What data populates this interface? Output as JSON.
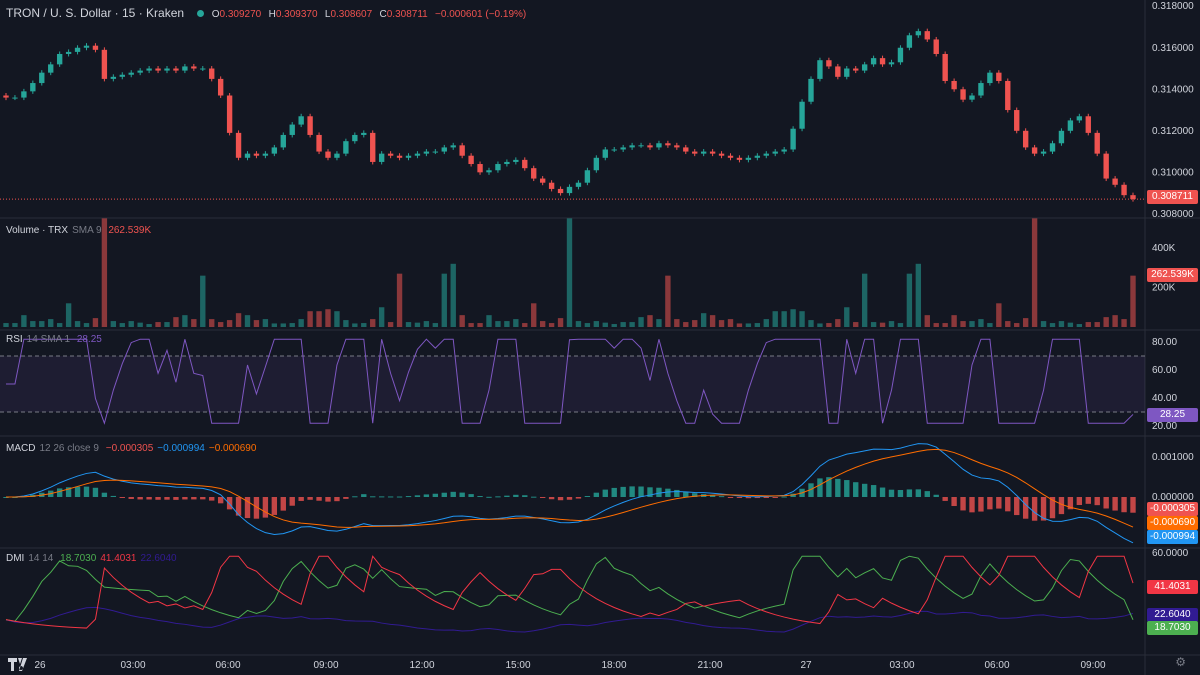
{
  "header": {
    "symbol_line": "TRON / U. S. Dollar · 15 · Kraken",
    "ohlc": [
      {
        "k": "O",
        "v": "0.309270"
      },
      {
        "k": "H",
        "v": "0.309370"
      },
      {
        "k": "L",
        "v": "0.308607"
      },
      {
        "k": "C",
        "v": "0.308711"
      }
    ],
    "change": "−0.000601 (−0.19%)"
  },
  "colors": {
    "bg": "#131722",
    "up": "#26a69a",
    "down": "#ef5350",
    "text": "#d1d4dc",
    "dim": "#787b86",
    "rsi": "#7e57c2",
    "macd": "#2196f3",
    "signal": "#ff6d00",
    "dmi_plus": "#4caf50",
    "dmi_minus": "#f23645",
    "adx": "#311b92"
  },
  "price_pane": {
    "ticks": [
      "0.318000",
      "0.316000",
      "0.314000",
      "0.312000",
      "0.310000",
      "0.308000"
    ],
    "current_tag": "0.308711"
  },
  "volume_pane": {
    "legend_name": "Volume · TRX",
    "legend_param": "SMA 9",
    "legend_value": "262.539K",
    "ticks": [
      "400K",
      "200K"
    ],
    "current_tag": "262.539K"
  },
  "rsi_pane": {
    "legend_name": "RSI",
    "legend_param": "14 SMA 1",
    "legend_value": "28.25",
    "ticks": [
      "80.00",
      "60.00",
      "40.00",
      "20.00"
    ],
    "current_tag": "28.25"
  },
  "macd_pane": {
    "legend_name": "MACD",
    "legend_param": "12 26 close 9",
    "v1": "−0.000305",
    "v2": "−0.000994",
    "v3": "−0.000690",
    "ticks": [
      "0.001000",
      "0.000000"
    ],
    "tags": [
      "-0.000305",
      "-0.000690",
      "-0.000994"
    ]
  },
  "dmi_pane": {
    "legend_name": "DMI",
    "legend_param": "14 14",
    "v1": "18.7030",
    "v2": "41.4031",
    "v3": "22.6040",
    "ticks": [
      "60.0000"
    ],
    "tags": [
      "41.4031",
      "22.6040",
      "18.7030"
    ]
  },
  "time_axis": [
    "26",
    "03:00",
    "06:00",
    "09:00",
    "12:00",
    "15:00",
    "18:00",
    "21:00",
    "27",
    "03:00",
    "06:00",
    "09:00"
  ],
  "chart_data": {
    "type": "candlestick",
    "title": "TRON / U. S. Dollar · 15 · Kraken",
    "ylim": [
      0.3078,
      0.3183
    ],
    "candles_close": [
      0.3136,
      0.3136,
      0.3139,
      0.3143,
      0.3148,
      0.3152,
      0.3157,
      0.3158,
      0.316,
      0.3161,
      0.3159,
      0.3145,
      0.3146,
      0.3147,
      0.3148,
      0.3149,
      0.315,
      0.3149,
      0.315,
      0.3149,
      0.3151,
      0.315,
      0.315,
      0.3145,
      0.3137,
      0.3119,
      0.3107,
      0.3109,
      0.3108,
      0.3109,
      0.3112,
      0.3118,
      0.3123,
      0.3127,
      0.3118,
      0.311,
      0.3107,
      0.3109,
      0.3115,
      0.3118,
      0.3119,
      0.3105,
      0.3109,
      0.3108,
      0.3107,
      0.3108,
      0.3109,
      0.311,
      0.311,
      0.3112,
      0.3113,
      0.3108,
      0.3104,
      0.31,
      0.3101,
      0.3104,
      0.3105,
      0.3106,
      0.3102,
      0.3097,
      0.3095,
      0.3092,
      0.309,
      0.3093,
      0.3095,
      0.3101,
      0.3107,
      0.3111,
      0.3111,
      0.3112,
      0.3113,
      0.3113,
      0.3112,
      0.3114,
      0.3113,
      0.3112,
      0.311,
      0.3109,
      0.311,
      0.3109,
      0.3108,
      0.3107,
      0.3106,
      0.3107,
      0.3108,
      0.3109,
      0.311,
      0.3111,
      0.3121,
      0.3134,
      0.3145,
      0.3154,
      0.3151,
      0.3146,
      0.315,
      0.3149,
      0.3152,
      0.3155,
      0.3152,
      0.3153,
      0.316,
      0.3166,
      0.3168,
      0.3164,
      0.3157,
      0.3144,
      0.314,
      0.3135,
      0.3137,
      0.3143,
      0.3148,
      0.3144,
      0.313,
      0.312,
      0.3112,
      0.3109,
      0.311,
      0.3114,
      0.312,
      0.3125,
      0.3127,
      0.3119,
      0.3109,
      0.3097,
      0.3094,
      0.3089,
      0.30871
    ],
    "volume_k_sample": [
      20,
      22,
      18,
      25,
      30,
      40,
      35,
      20,
      15,
      18,
      22,
      20,
      25,
      18,
      60,
      25,
      20,
      30,
      45,
      35,
      20,
      30,
      25,
      40,
      20,
      550,
      70,
      40,
      30,
      50,
      80,
      270,
      30,
      60,
      100,
      40,
      60,
      80,
      320,
      20,
      35,
      25,
      20,
      40,
      90,
      60,
      30,
      40,
      270,
      120,
      260,
      80
    ],
    "rsi_last": 28.25,
    "macd": {
      "macd": -0.000994,
      "signal": -0.00069,
      "hist": -0.000305
    },
    "dmi": {
      "plus": 18.703,
      "minus": 41.4031,
      "adx": 22.604
    },
    "xlabel": "",
    "ylabel": ""
  }
}
